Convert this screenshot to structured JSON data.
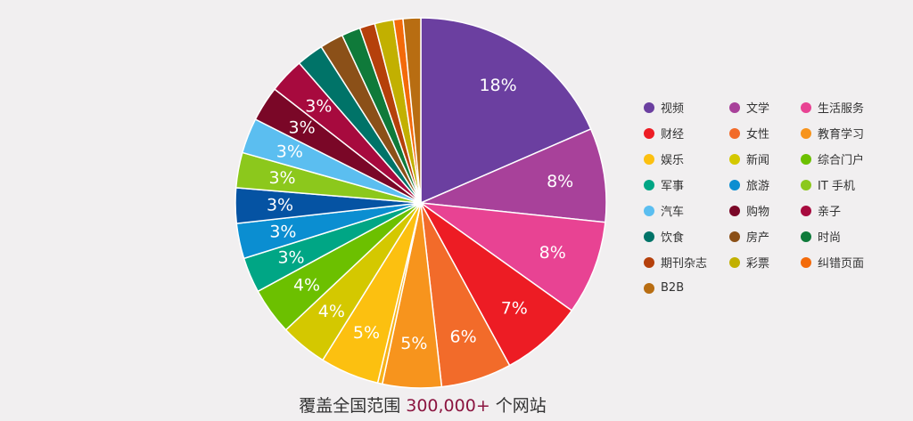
{
  "caption": {
    "prefix": "覆盖全国范围",
    "highlight": "300,000+",
    "suffix": "个网站",
    "highlight_color": "#8b1540"
  },
  "chart_data": {
    "type": "pie",
    "legend_position": "right",
    "start_angle_deg": 0,
    "direction": "clockwise",
    "slices": [
      {
        "name": "视频",
        "value": 18,
        "label": "18%",
        "color": "#6b3fa0"
      },
      {
        "name": "文学",
        "value": 8,
        "label": "8%",
        "color": "#a8419a"
      },
      {
        "name": "生活服务",
        "value": 8,
        "label": "8%",
        "color": "#e84393"
      },
      {
        "name": "财经",
        "value": 7,
        "label": "7%",
        "color": "#ed1c24"
      },
      {
        "name": "女性",
        "value": 6,
        "label": "6%",
        "color": "#f26b2a"
      },
      {
        "name": "教育学习",
        "value": 5,
        "label": "5%",
        "color": "#f7941d"
      },
      {
        "name": "",
        "value": 0.4,
        "label": "",
        "color": "#f7b219"
      },
      {
        "name": "娱乐",
        "value": 5,
        "label": "5%",
        "color": "#fcc010"
      },
      {
        "name": "新闻",
        "value": 4,
        "label": "4%",
        "color": "#d4c800"
      },
      {
        "name": "综合门户",
        "value": 4,
        "label": "4%",
        "color": "#6cc000"
      },
      {
        "name": "军事",
        "value": 3,
        "label": "3%",
        "color": "#00a685"
      },
      {
        "name": "旅游",
        "value": 3,
        "label": "3%",
        "color": "#0b8ed1"
      },
      {
        "name": "IT 手机",
        "value": 3,
        "label": "3%",
        "color": "#0553a3"
      },
      {
        "name": "",
        "value": 3,
        "label": "3%",
        "color": "#8cc81c"
      },
      {
        "name": "汽车",
        "value": 3,
        "label": "3%",
        "color": "#5bbef0"
      },
      {
        "name": "购物",
        "value": 3,
        "label": "3%",
        "color": "#7a0727"
      },
      {
        "name": "亲子",
        "value": 3,
        "label": "3%",
        "color": "#a70a3e"
      },
      {
        "name": "饮食",
        "value": 2.3,
        "label": "",
        "color": "#007368"
      },
      {
        "name": "房产",
        "value": 2,
        "label": "",
        "color": "#8b5018"
      },
      {
        "name": "时尚",
        "value": 1.6,
        "label": "",
        "color": "#0f7a3a"
      },
      {
        "name": "期刊杂志",
        "value": 1.3,
        "label": "",
        "color": "#b5400b"
      },
      {
        "name": "彩票",
        "value": 1.6,
        "label": "",
        "color": "#c2b000"
      },
      {
        "name": "纠错页面",
        "value": 0.8,
        "label": "",
        "color": "#f36a0a"
      },
      {
        "name": "B2B",
        "value": 1.5,
        "label": "",
        "color": "#b86d12"
      }
    ],
    "legend": [
      {
        "name": "视频",
        "color": "#6b3fa0"
      },
      {
        "name": "文学",
        "color": "#a8419a"
      },
      {
        "name": "生活服务",
        "color": "#e84393"
      },
      {
        "name": "财经",
        "color": "#ed1c24"
      },
      {
        "name": "女性",
        "color": "#f26b2a"
      },
      {
        "name": "教育学习",
        "color": "#f7941d"
      },
      {
        "name": "娱乐",
        "color": "#fcc010"
      },
      {
        "name": "新闻",
        "color": "#d4c800"
      },
      {
        "name": "综合门户",
        "color": "#6cc000"
      },
      {
        "name": "军事",
        "color": "#00a685"
      },
      {
        "name": "旅游",
        "color": "#0b8ed1"
      },
      {
        "name": "IT 手机",
        "color": "#8cc81c"
      },
      {
        "name": "汽车",
        "color": "#5bbef0"
      },
      {
        "name": "购物",
        "color": "#7a0727"
      },
      {
        "name": "亲子",
        "color": "#a70a3e"
      },
      {
        "name": "饮食",
        "color": "#007368"
      },
      {
        "name": "房产",
        "color": "#8b5018"
      },
      {
        "name": "时尚",
        "color": "#0f7a3a"
      },
      {
        "name": "期刊杂志",
        "color": "#b5400b"
      },
      {
        "name": "彩票",
        "color": "#c2b000"
      },
      {
        "name": "纠错页面",
        "color": "#f36a0a"
      },
      {
        "name": "B2B",
        "color": "#b86d12"
      }
    ]
  }
}
